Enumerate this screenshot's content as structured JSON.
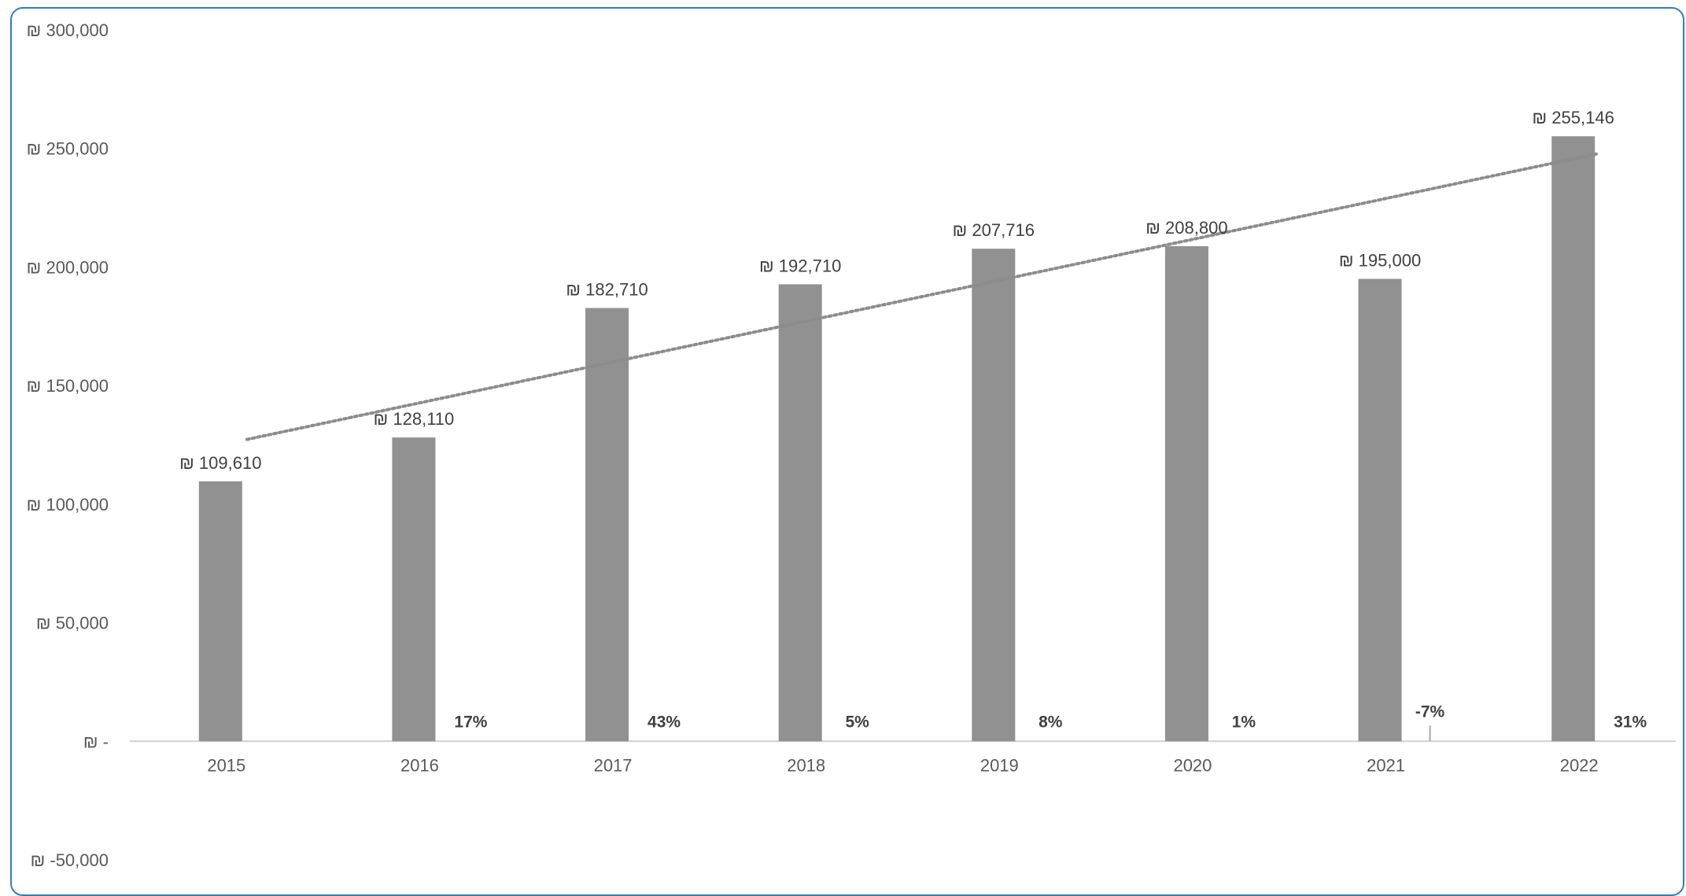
{
  "chart_data": {
    "type": "bar",
    "categories": [
      "2015",
      "2016",
      "2017",
      "2018",
      "2019",
      "2020",
      "2021",
      "2022"
    ],
    "values": [
      109610,
      128110,
      182710,
      192710,
      207716,
      208800,
      195000,
      255146
    ],
    "value_labels": [
      "₪ 109,610",
      "₪ 128,110",
      "₪ 182,710",
      "₪ 192,710",
      "₪ 207,716",
      "₪ 208,800",
      "₪ 195,000",
      "₪ 255,146"
    ],
    "growth_percent": [
      null,
      17,
      43,
      5,
      8,
      1,
      -7,
      31
    ],
    "growth_labels": [
      "",
      "17%",
      "43%",
      "5%",
      "8%",
      "1%",
      "-7%",
      "31%"
    ],
    "y_ticks": [
      300000,
      250000,
      200000,
      150000,
      100000,
      50000,
      0,
      -50000
    ],
    "y_tick_labels": [
      "₪ 300,000",
      "₪ 250,000",
      "₪ 200,000",
      "₪ 150,000",
      "₪ 100,000",
      "₪ 50,000",
      "₪ -",
      "₪ -50,000"
    ],
    "ylim": [
      -50000,
      300000
    ],
    "trendline": {
      "type": "linear",
      "style": "dotted"
    },
    "bar_color": "#919191",
    "trend_color": "#8c8c8c",
    "axis_color": "#d0d0d0",
    "title": "",
    "xlabel": "",
    "ylabel": "",
    "grid": false,
    "legend": "none"
  }
}
